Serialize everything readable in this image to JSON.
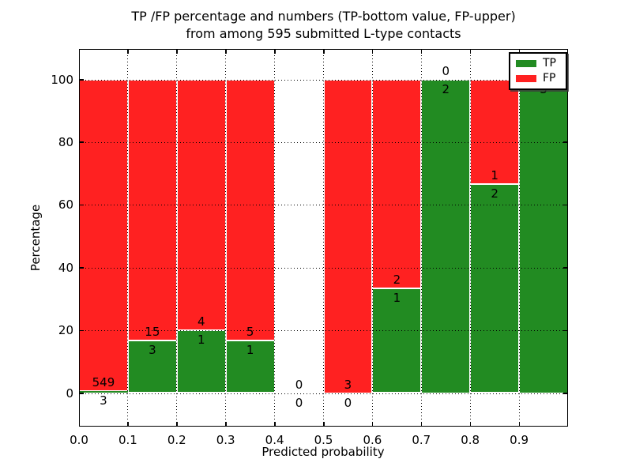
{
  "title": {
    "line1": "TP /FP percentage and numbers (TP-bottom value, FP-upper)",
    "line2": "from among 595 submitted L-type contacts"
  },
  "legend": {
    "items": [
      {
        "label": "TP",
        "color": "#228b22"
      },
      {
        "label": "FP",
        "color": "#ff2121"
      }
    ]
  },
  "chart_data": {
    "type": "bar",
    "subtype": "stacked-100pct-histogram",
    "title": "TP /FP percentage and numbers (TP-bottom value, FP-upper) from among 595 submitted L-type contacts",
    "xlabel": "Predicted probability",
    "ylabel": "Percentage",
    "total_contacts": 595,
    "xlim": [
      0.0,
      1.0
    ],
    "ylim": [
      0,
      100
    ],
    "grid": "dotted black, on top of bars",
    "legend_position": "upper right",
    "x_tick_labels": [
      "0.0",
      "0.1",
      "0.2",
      "0.3",
      "0.4",
      "0.5",
      "0.6",
      "0.7",
      "0.8",
      "0.9"
    ],
    "y_tick_labels": [
      "0",
      "20",
      "40",
      "60",
      "80",
      "100"
    ],
    "y_tick_values": [
      0,
      20,
      40,
      60,
      80,
      100
    ],
    "colors": {
      "tp": "#228b22",
      "fp": "#ff2121",
      "bar_edge": "#ffffff"
    },
    "series": [
      {
        "name": "TP",
        "values": [
          3,
          3,
          1,
          1,
          0,
          0,
          1,
          2,
          2,
          3
        ]
      },
      {
        "name": "FP",
        "values": [
          549,
          15,
          4,
          5,
          0,
          3,
          2,
          0,
          1,
          0
        ]
      }
    ],
    "bins": [
      {
        "range": "0.0-0.1",
        "tp": 3,
        "fp": 549,
        "tp_pct": 0.54,
        "fp_pct": 99.46
      },
      {
        "range": "0.1-0.2",
        "tp": 3,
        "fp": 15,
        "tp_pct": 16.67,
        "fp_pct": 83.33
      },
      {
        "range": "0.2-0.3",
        "tp": 1,
        "fp": 4,
        "tp_pct": 20.0,
        "fp_pct": 80.0
      },
      {
        "range": "0.3-0.4",
        "tp": 1,
        "fp": 5,
        "tp_pct": 16.67,
        "fp_pct": 83.33
      },
      {
        "range": "0.4-0.5",
        "tp": 0,
        "fp": 0,
        "tp_pct": 0.0,
        "fp_pct": 0.0
      },
      {
        "range": "0.5-0.6",
        "tp": 0,
        "fp": 3,
        "tp_pct": 0.0,
        "fp_pct": 100.0
      },
      {
        "range": "0.6-0.7",
        "tp": 1,
        "fp": 2,
        "tp_pct": 33.33,
        "fp_pct": 66.67
      },
      {
        "range": "0.7-0.8",
        "tp": 2,
        "fp": 0,
        "tp_pct": 100.0,
        "fp_pct": 0.0
      },
      {
        "range": "0.8-0.9",
        "tp": 2,
        "fp": 1,
        "tp_pct": 66.67,
        "fp_pct": 33.33
      },
      {
        "range": "0.9-1.0",
        "tp": 3,
        "fp": 0,
        "tp_pct": 100.0,
        "fp_pct": 0.0
      }
    ]
  }
}
